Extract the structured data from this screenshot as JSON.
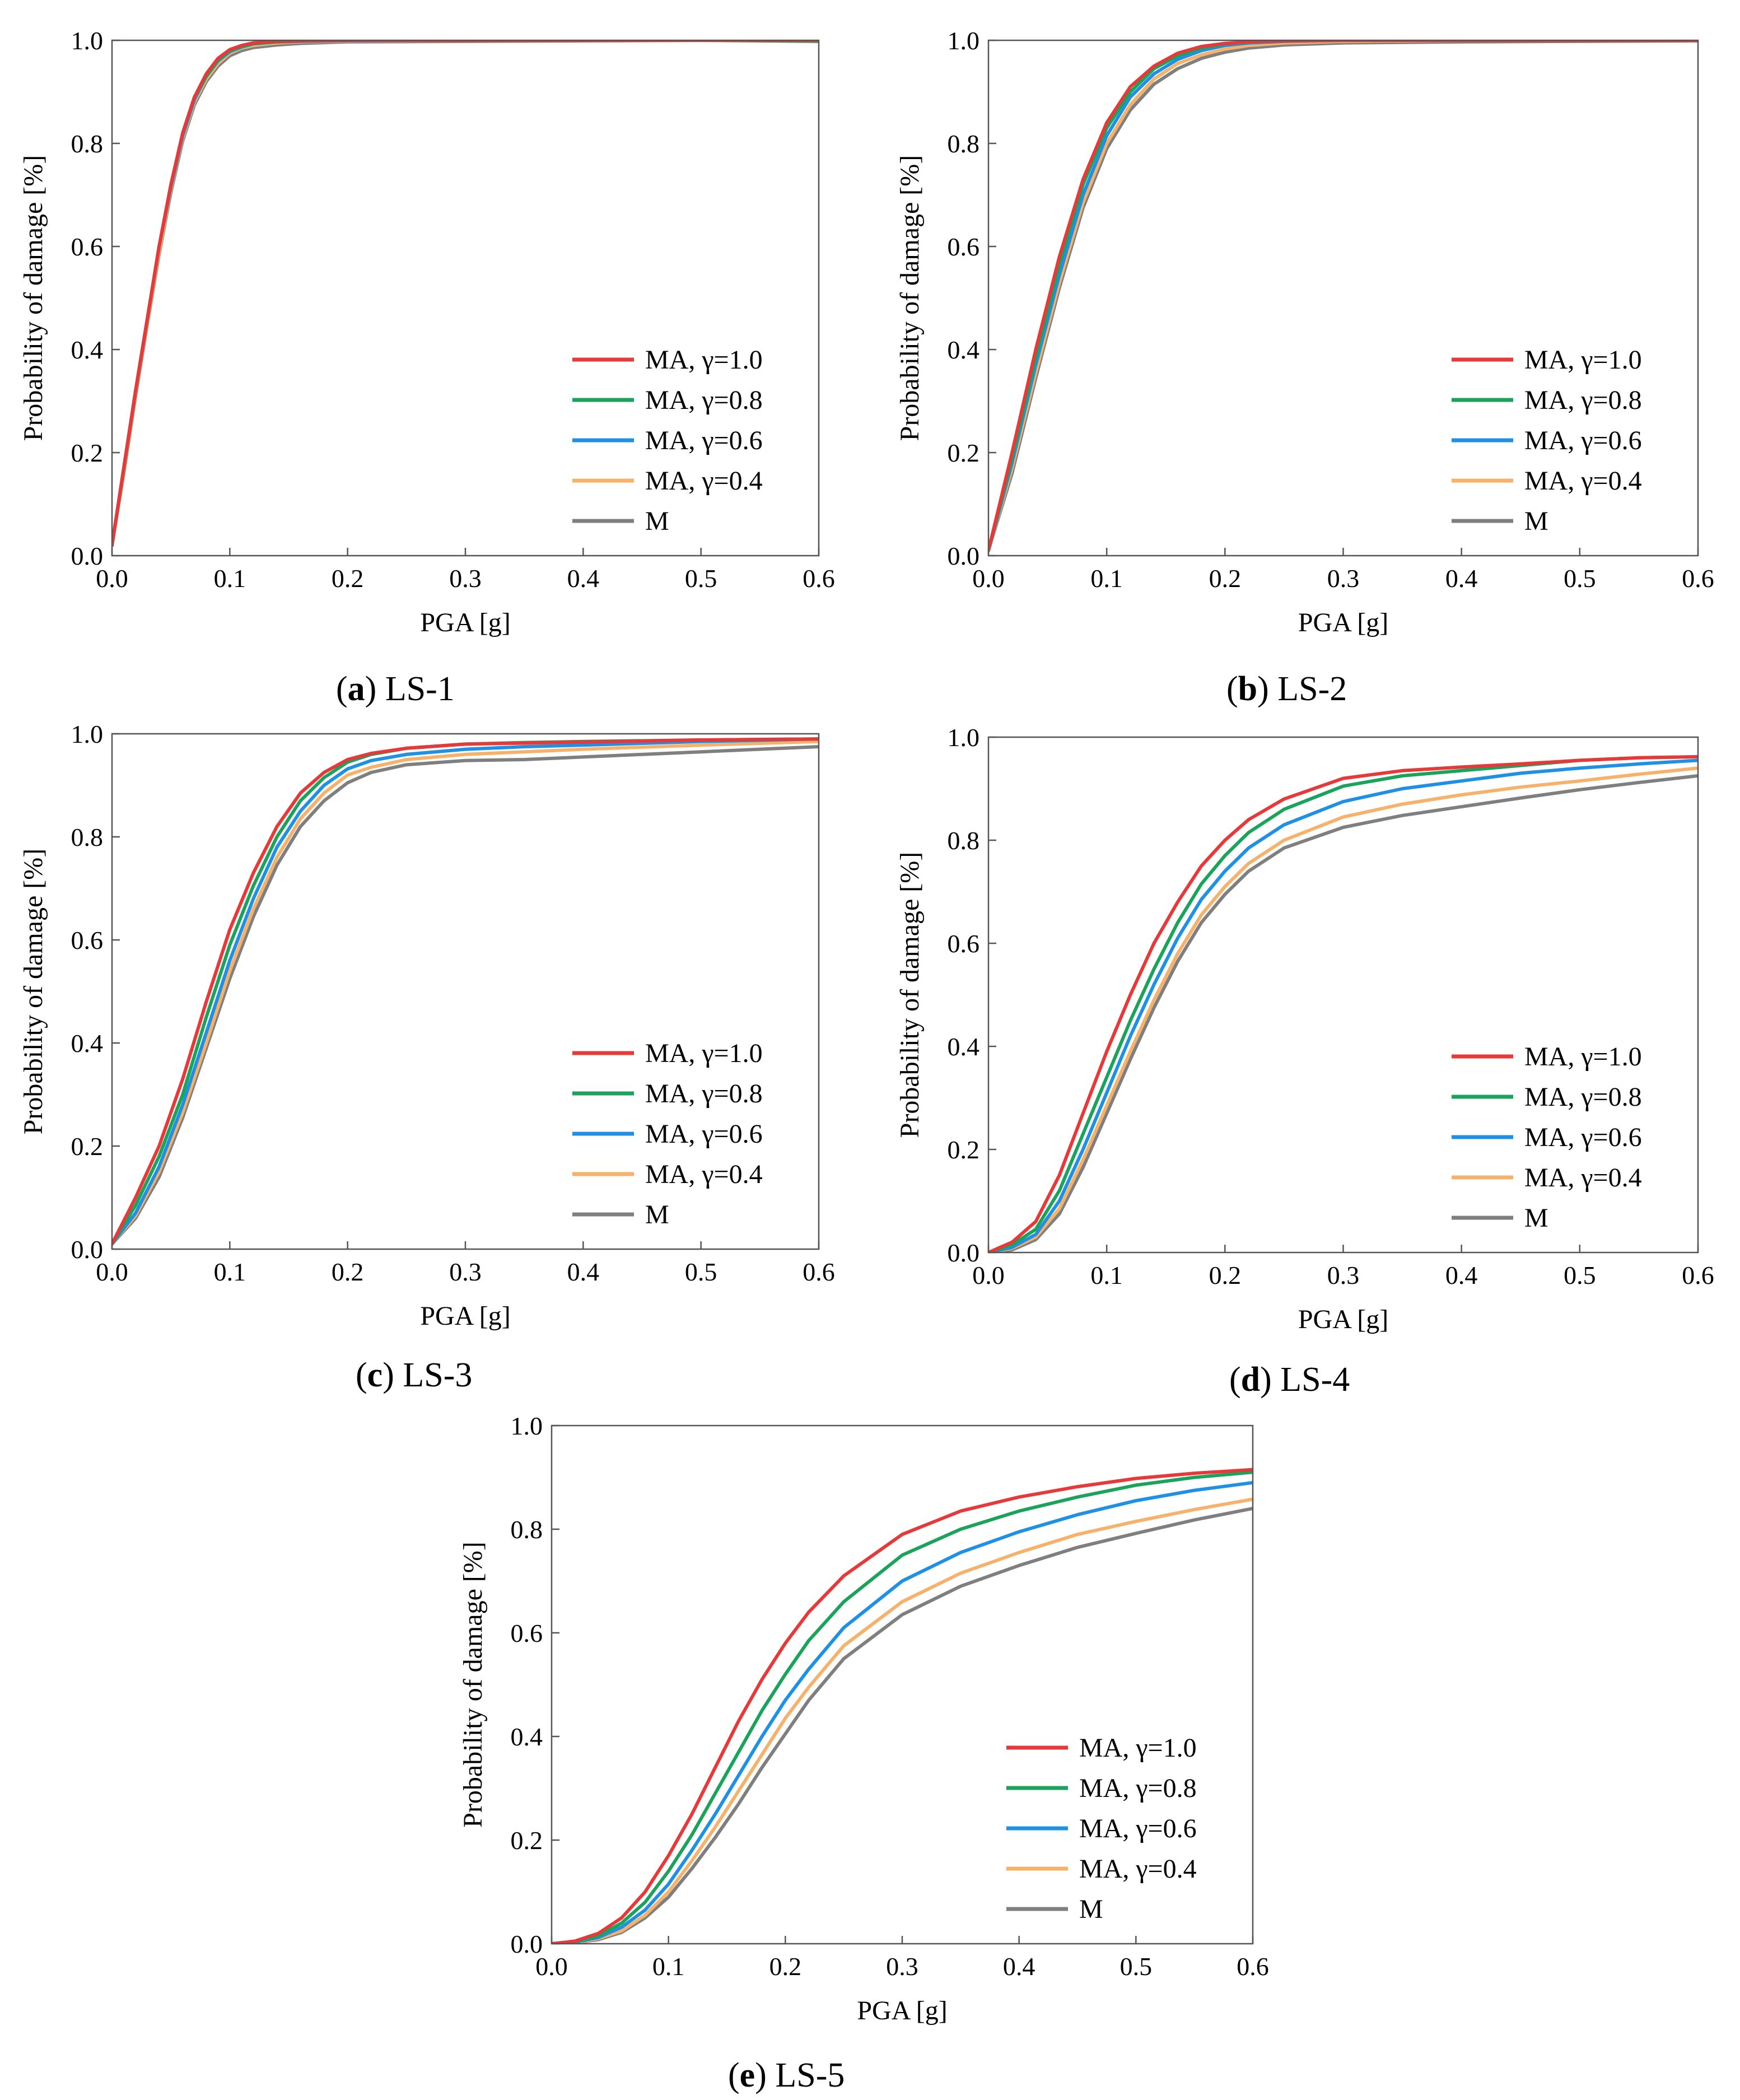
{
  "figure": {
    "series_style": [
      {
        "name": "MA, γ=1.0",
        "color": "#e8393a"
      },
      {
        "name": "MA, γ=0.8",
        "color": "#1aa35a"
      },
      {
        "name": "MA, γ=0.6",
        "color": "#1e90e6"
      },
      {
        "name": "MA, γ=0.4",
        "color": "#f6b26b"
      },
      {
        "name": "M",
        "color": "#7f7f7f"
      }
    ]
  },
  "chart_data": [
    {
      "type": "line",
      "panel_letter": "a",
      "title": "LS-1",
      "xlabel": "PGA [g]",
      "ylabel": "Probability of damage [%]",
      "xlim": [
        0,
        0.6
      ],
      "ylim": [
        0,
        1.0
      ],
      "xticks": [
        "0.0",
        "0.1",
        "0.2",
        "0.3",
        "0.4",
        "0.5",
        "0.6"
      ],
      "yticks": [
        "0.0",
        "0.2",
        "0.4",
        "0.6",
        "0.8",
        "1.0"
      ],
      "legend_position": "lower-right",
      "x": [
        0,
        0.01,
        0.02,
        0.03,
        0.04,
        0.05,
        0.06,
        0.07,
        0.08,
        0.09,
        0.1,
        0.11,
        0.12,
        0.14,
        0.16,
        0.2,
        0.3,
        0.4,
        0.5,
        0.6
      ],
      "series": [
        {
          "name": "MA, γ=1.0",
          "values": [
            0.02,
            0.17,
            0.32,
            0.46,
            0.6,
            0.72,
            0.82,
            0.89,
            0.935,
            0.965,
            0.982,
            0.99,
            0.995,
            0.998,
            0.999,
            1.0,
            1.0,
            1.0,
            1.0,
            1.0
          ]
        },
        {
          "name": "MA, γ=0.8",
          "values": [
            0.02,
            0.17,
            0.32,
            0.46,
            0.6,
            0.72,
            0.82,
            0.89,
            0.93,
            0.962,
            0.98,
            0.988,
            0.994,
            0.997,
            0.999,
            1.0,
            1.0,
            1.0,
            1.0,
            0.998
          ]
        },
        {
          "name": "MA, γ=0.6",
          "values": [
            0.02,
            0.17,
            0.32,
            0.46,
            0.6,
            0.715,
            0.815,
            0.885,
            0.93,
            0.96,
            0.978,
            0.987,
            0.993,
            0.997,
            0.998,
            0.999,
            1.0,
            1.0,
            1.0,
            1.0
          ]
        },
        {
          "name": "MA, γ=0.4",
          "values": [
            0.02,
            0.165,
            0.315,
            0.455,
            0.59,
            0.71,
            0.81,
            0.88,
            0.925,
            0.955,
            0.975,
            0.985,
            0.99,
            0.995,
            0.997,
            0.998,
            1.0,
            1.0,
            1.0,
            1.0
          ]
        },
        {
          "name": "M",
          "values": [
            0.02,
            0.16,
            0.31,
            0.45,
            0.585,
            0.705,
            0.805,
            0.875,
            0.92,
            0.95,
            0.97,
            0.98,
            0.986,
            0.991,
            0.994,
            0.997,
            0.998,
            0.999,
            1.0,
            1.0
          ]
        }
      ]
    },
    {
      "type": "line",
      "panel_letter": "b",
      "title": "LS-2",
      "xlabel": "PGA [g]",
      "ylabel": "Probability of damage [%]",
      "xlim": [
        0,
        0.6
      ],
      "ylim": [
        0,
        1.0
      ],
      "xticks": [
        "0.0",
        "0.1",
        "0.2",
        "0.3",
        "0.4",
        "0.5",
        "0.6"
      ],
      "yticks": [
        "0.0",
        "0.2",
        "0.4",
        "0.6",
        "0.8",
        "1.0"
      ],
      "legend_position": "lower-right",
      "x": [
        0,
        0.02,
        0.04,
        0.06,
        0.08,
        0.1,
        0.12,
        0.14,
        0.16,
        0.18,
        0.2,
        0.22,
        0.25,
        0.3,
        0.4,
        0.5,
        0.6
      ],
      "series": [
        {
          "name": "MA, γ=1.0",
          "values": [
            0.01,
            0.2,
            0.4,
            0.58,
            0.73,
            0.84,
            0.91,
            0.95,
            0.975,
            0.988,
            0.994,
            0.997,
            0.999,
            1.0,
            1.0,
            1.0,
            1.0
          ]
        },
        {
          "name": "MA, γ=0.8",
          "values": [
            0.01,
            0.19,
            0.385,
            0.565,
            0.72,
            0.83,
            0.9,
            0.945,
            0.97,
            0.985,
            0.993,
            0.997,
            0.999,
            1.0,
            1.0,
            1.0,
            1.0
          ]
        },
        {
          "name": "MA, γ=0.6",
          "values": [
            0.01,
            0.18,
            0.37,
            0.545,
            0.7,
            0.815,
            0.89,
            0.935,
            0.963,
            0.98,
            0.99,
            0.995,
            0.998,
            1.0,
            1.0,
            1.0,
            1.0
          ]
        },
        {
          "name": "MA, γ=0.4",
          "values": [
            0.01,
            0.17,
            0.355,
            0.53,
            0.685,
            0.8,
            0.875,
            0.925,
            0.955,
            0.972,
            0.983,
            0.99,
            0.995,
            0.998,
            1.0,
            1.0,
            1.0
          ]
        },
        {
          "name": "M",
          "values": [
            0.01,
            0.16,
            0.345,
            0.52,
            0.675,
            0.79,
            0.865,
            0.915,
            0.945,
            0.965,
            0.977,
            0.985,
            0.991,
            0.995,
            0.997,
            0.998,
            0.999
          ]
        }
      ]
    },
    {
      "type": "line",
      "panel_letter": "c",
      "title": "LS-3",
      "xlabel": "PGA [g]",
      "ylabel": "Probability of damage [%]",
      "xlim": [
        0,
        0.6
      ],
      "ylim": [
        0,
        1.0
      ],
      "xticks": [
        "0.0",
        "0.1",
        "0.2",
        "0.3",
        "0.4",
        "0.5",
        "0.6"
      ],
      "yticks": [
        "0.0",
        "0.2",
        "0.4",
        "0.6",
        "0.8",
        "1.0"
      ],
      "legend_position": "lower-right",
      "x": [
        0,
        0.02,
        0.04,
        0.06,
        0.08,
        0.1,
        0.12,
        0.14,
        0.16,
        0.18,
        0.2,
        0.22,
        0.25,
        0.3,
        0.35,
        0.4,
        0.5,
        0.6
      ],
      "series": [
        {
          "name": "MA, γ=1.0",
          "values": [
            0.01,
            0.1,
            0.2,
            0.33,
            0.48,
            0.62,
            0.73,
            0.82,
            0.885,
            0.925,
            0.95,
            0.962,
            0.972,
            0.98,
            0.982,
            0.984,
            0.988,
            0.99
          ]
        },
        {
          "name": "MA, γ=0.8",
          "values": [
            0.01,
            0.085,
            0.18,
            0.3,
            0.45,
            0.59,
            0.705,
            0.8,
            0.87,
            0.915,
            0.945,
            0.96,
            0.972,
            0.98,
            0.983,
            0.985,
            0.988,
            0.99
          ]
        },
        {
          "name": "MA, γ=0.6",
          "values": [
            0.01,
            0.07,
            0.16,
            0.28,
            0.42,
            0.56,
            0.68,
            0.78,
            0.85,
            0.9,
            0.932,
            0.948,
            0.96,
            0.97,
            0.975,
            0.978,
            0.985,
            0.99
          ]
        },
        {
          "name": "MA, γ=0.4",
          "values": [
            0.01,
            0.065,
            0.15,
            0.265,
            0.4,
            0.54,
            0.66,
            0.76,
            0.835,
            0.885,
            0.92,
            0.935,
            0.95,
            0.96,
            0.965,
            0.97,
            0.978,
            0.985
          ]
        },
        {
          "name": "M",
          "values": [
            0.01,
            0.06,
            0.14,
            0.255,
            0.39,
            0.525,
            0.645,
            0.745,
            0.82,
            0.87,
            0.905,
            0.925,
            0.94,
            0.948,
            0.95,
            0.955,
            0.965,
            0.975
          ]
        }
      ]
    },
    {
      "type": "line",
      "panel_letter": "d",
      "title": "LS-4",
      "xlabel": "PGA [g]",
      "ylabel": "Probability of damage [%]",
      "xlim": [
        0,
        0.6
      ],
      "ylim": [
        0,
        1.0
      ],
      "xticks": [
        "0.0",
        "0.1",
        "0.2",
        "0.3",
        "0.4",
        "0.5",
        "0.6"
      ],
      "yticks": [
        "0.0",
        "0.2",
        "0.4",
        "0.6",
        "0.8",
        "1.0"
      ],
      "legend_position": "lower-right",
      "x": [
        0,
        0.02,
        0.04,
        0.06,
        0.08,
        0.1,
        0.12,
        0.14,
        0.16,
        0.18,
        0.2,
        0.22,
        0.25,
        0.3,
        0.35,
        0.4,
        0.45,
        0.5,
        0.55,
        0.6
      ],
      "series": [
        {
          "name": "MA, γ=1.0",
          "values": [
            0.0,
            0.02,
            0.06,
            0.15,
            0.27,
            0.39,
            0.5,
            0.6,
            0.68,
            0.75,
            0.8,
            0.84,
            0.88,
            0.92,
            0.935,
            0.942,
            0.948,
            0.955,
            0.96,
            0.962
          ]
        },
        {
          "name": "MA, γ=0.8",
          "values": [
            0.0,
            0.015,
            0.045,
            0.12,
            0.23,
            0.34,
            0.45,
            0.55,
            0.64,
            0.715,
            0.77,
            0.815,
            0.86,
            0.905,
            0.925,
            0.935,
            0.945,
            0.955,
            0.96,
            0.962
          ]
        },
        {
          "name": "MA, γ=0.6",
          "values": [
            0.0,
            0.01,
            0.035,
            0.1,
            0.2,
            0.31,
            0.42,
            0.52,
            0.61,
            0.685,
            0.74,
            0.785,
            0.83,
            0.875,
            0.9,
            0.915,
            0.93,
            0.94,
            0.948,
            0.955
          ]
        },
        {
          "name": "MA, γ=0.4",
          "values": [
            0.0,
            0.008,
            0.03,
            0.085,
            0.18,
            0.285,
            0.39,
            0.49,
            0.58,
            0.655,
            0.71,
            0.755,
            0.8,
            0.845,
            0.87,
            0.888,
            0.903,
            0.915,
            0.928,
            0.94
          ]
        },
        {
          "name": "M",
          "values": [
            0.0,
            0.005,
            0.025,
            0.075,
            0.165,
            0.27,
            0.375,
            0.475,
            0.565,
            0.64,
            0.695,
            0.74,
            0.785,
            0.825,
            0.848,
            0.865,
            0.882,
            0.898,
            0.912,
            0.925
          ]
        }
      ]
    },
    {
      "type": "line",
      "panel_letter": "e",
      "title": "LS-5",
      "xlabel": "PGA [g]",
      "ylabel": "Probability of damage [%]",
      "xlim": [
        0,
        0.6
      ],
      "ylim": [
        0,
        1.0
      ],
      "xticks": [
        "0.0",
        "0.1",
        "0.2",
        "0.3",
        "0.4",
        "0.5",
        "0.6"
      ],
      "yticks": [
        "0.0",
        "0.2",
        "0.4",
        "0.6",
        "0.8",
        "1.0"
      ],
      "legend_position": "lower-right",
      "x": [
        0,
        0.02,
        0.04,
        0.06,
        0.08,
        0.1,
        0.12,
        0.14,
        0.16,
        0.18,
        0.2,
        0.22,
        0.25,
        0.3,
        0.35,
        0.4,
        0.45,
        0.5,
        0.55,
        0.6
      ],
      "series": [
        {
          "name": "MA, γ=1.0",
          "values": [
            0.0,
            0.005,
            0.02,
            0.05,
            0.1,
            0.17,
            0.25,
            0.34,
            0.43,
            0.51,
            0.58,
            0.64,
            0.71,
            0.79,
            0.835,
            0.862,
            0.882,
            0.898,
            0.908,
            0.915
          ]
        },
        {
          "name": "MA, γ=0.8",
          "values": [
            0.0,
            0.004,
            0.015,
            0.04,
            0.08,
            0.14,
            0.21,
            0.29,
            0.37,
            0.45,
            0.52,
            0.585,
            0.66,
            0.75,
            0.8,
            0.835,
            0.862,
            0.885,
            0.9,
            0.91
          ]
        },
        {
          "name": "MA, γ=0.6",
          "values": [
            0.0,
            0.003,
            0.012,
            0.032,
            0.065,
            0.115,
            0.18,
            0.25,
            0.325,
            0.4,
            0.47,
            0.53,
            0.61,
            0.7,
            0.755,
            0.795,
            0.828,
            0.855,
            0.875,
            0.89
          ]
        },
        {
          "name": "MA, γ=0.4",
          "values": [
            0.0,
            0.002,
            0.01,
            0.025,
            0.055,
            0.1,
            0.16,
            0.225,
            0.295,
            0.365,
            0.435,
            0.495,
            0.575,
            0.66,
            0.715,
            0.755,
            0.79,
            0.815,
            0.838,
            0.858
          ]
        },
        {
          "name": "M",
          "values": [
            0.0,
            0.002,
            0.008,
            0.022,
            0.05,
            0.09,
            0.145,
            0.205,
            0.27,
            0.34,
            0.405,
            0.47,
            0.55,
            0.635,
            0.69,
            0.73,
            0.765,
            0.792,
            0.818,
            0.84
          ]
        }
      ]
    }
  ]
}
